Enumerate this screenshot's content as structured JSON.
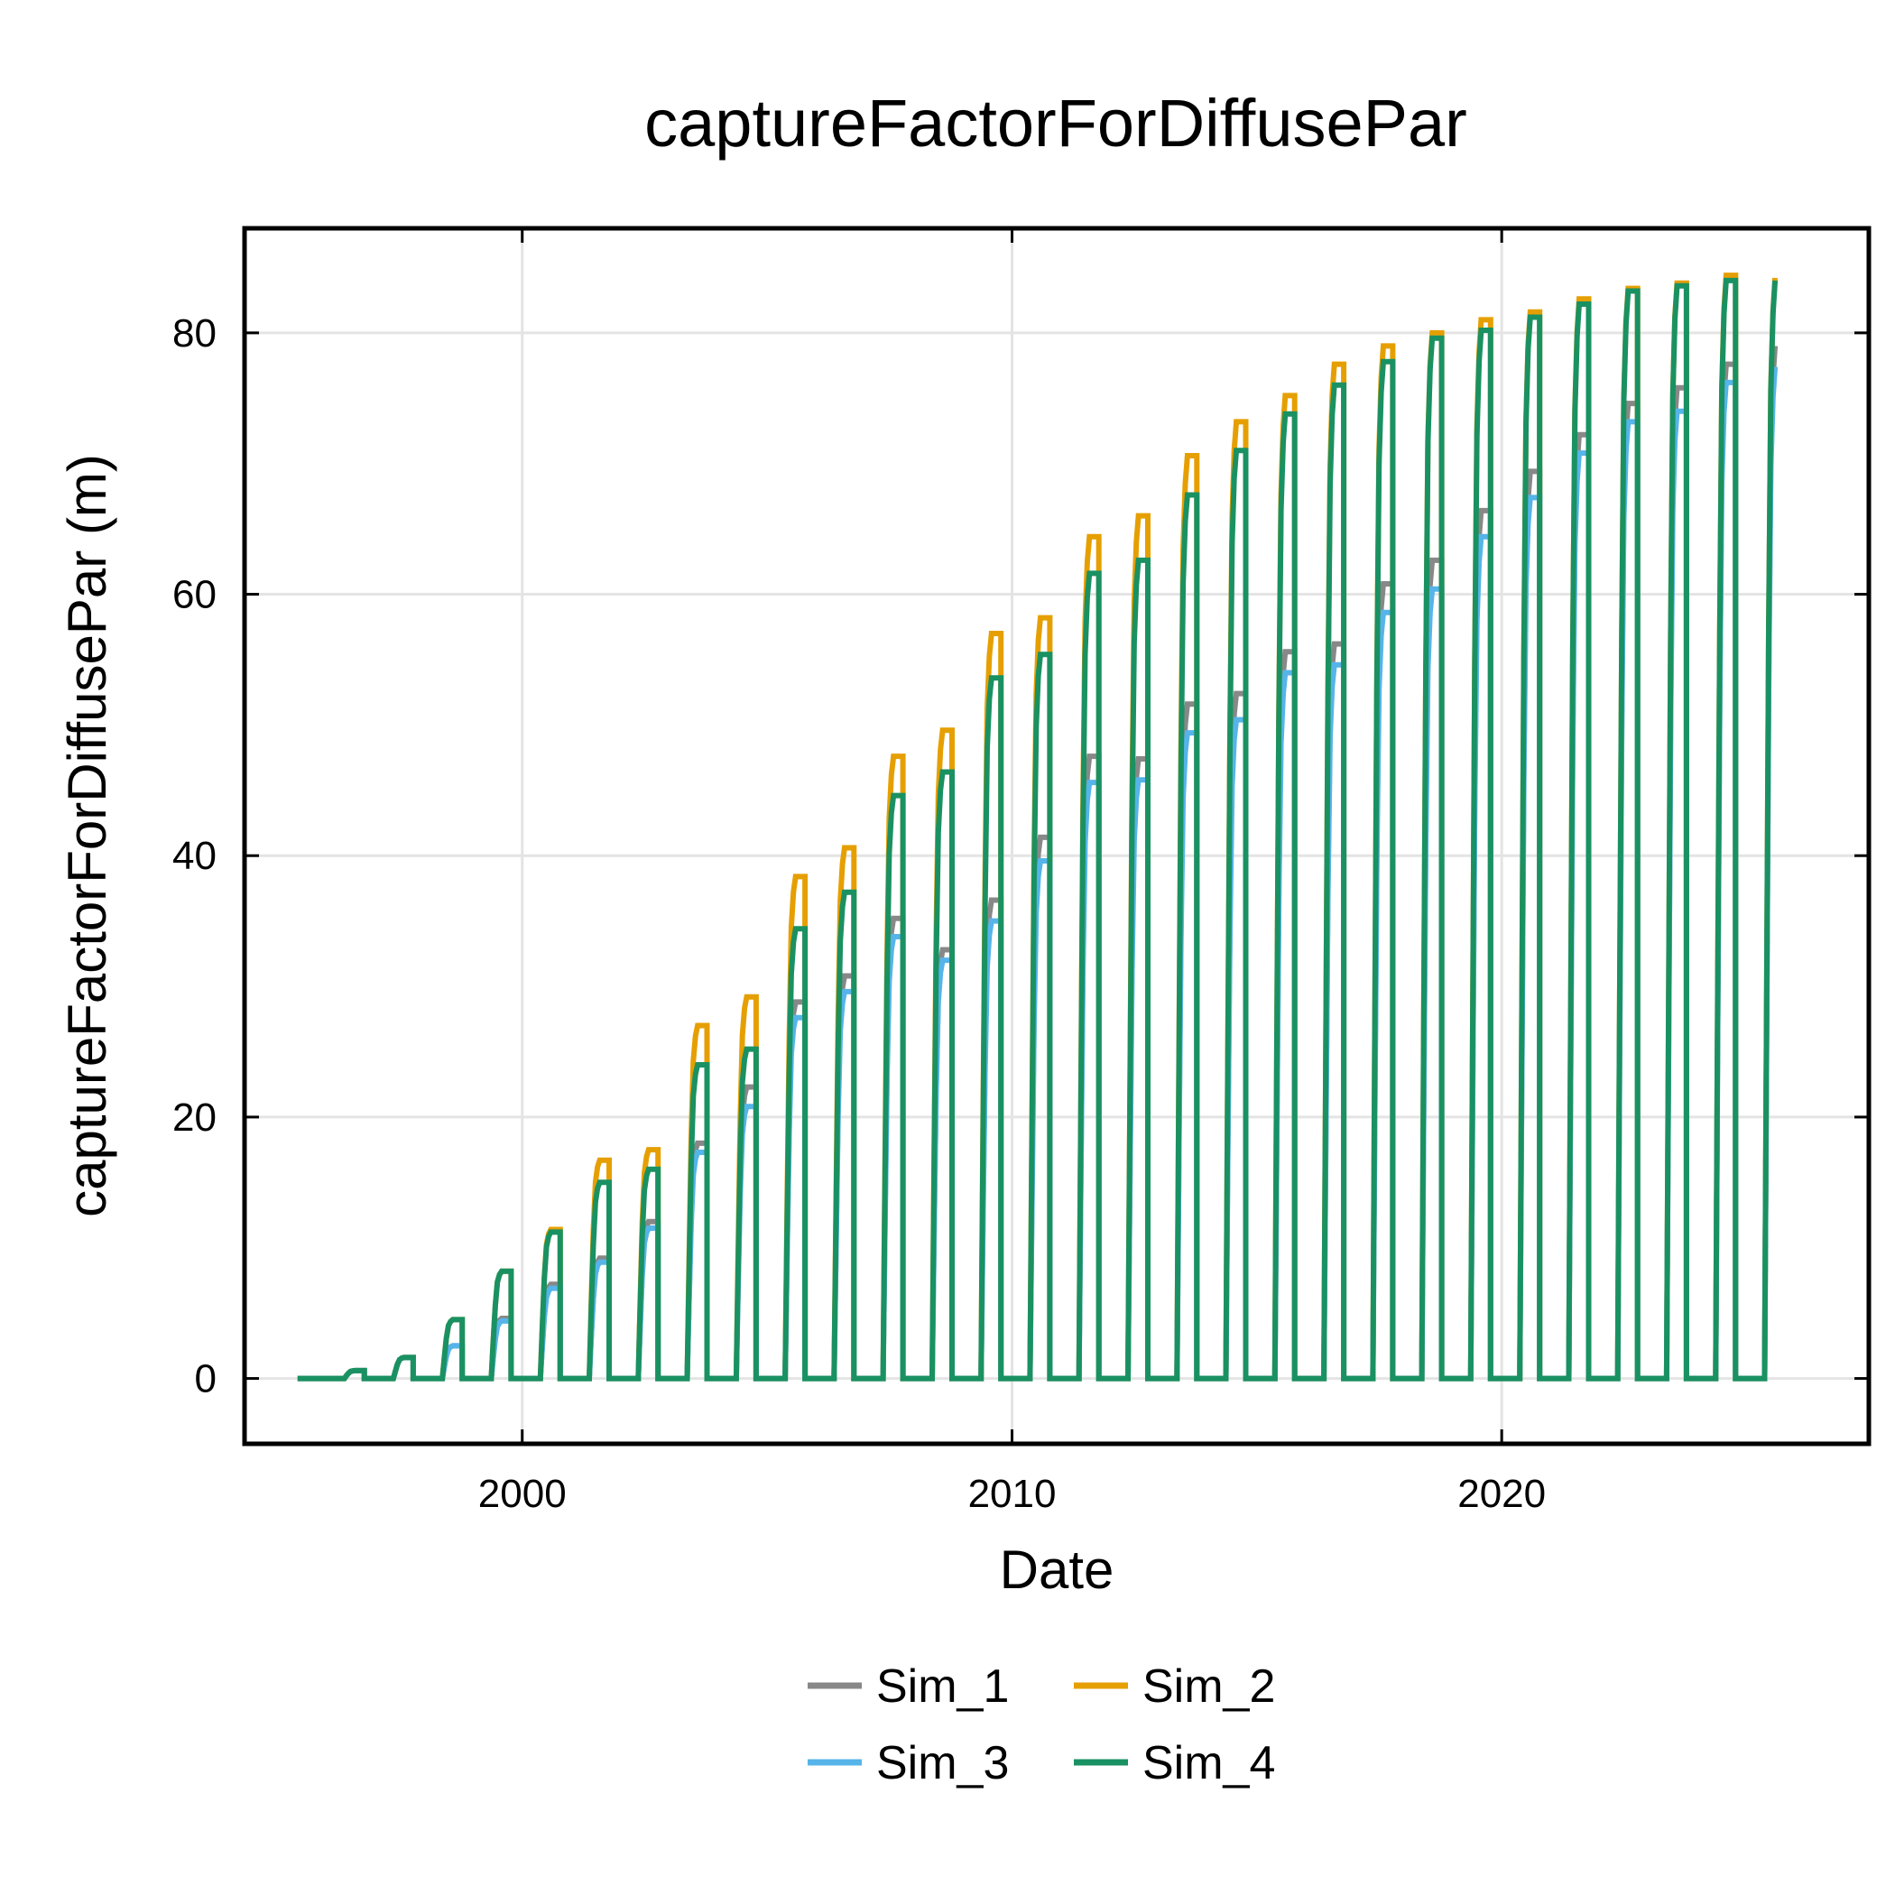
{
  "chart_data": {
    "type": "line",
    "title": "captureFactorForDiffusePar",
    "xlabel": "Date",
    "ylabel": "captureFactorForDiffusePar (m)",
    "x_scale": "time",
    "xlim": [
      "1994-05-01",
      "2027-07-01"
    ],
    "ylim": [
      -5,
      88
    ],
    "x_ticks": [
      {
        "value": "2000-01-01",
        "label": "2000"
      },
      {
        "value": "2010-01-01",
        "label": "2010"
      },
      {
        "value": "2020-01-01",
        "label": "2020"
      }
    ],
    "y_ticks": [
      {
        "value": 0,
        "label": "0"
      },
      {
        "value": 20,
        "label": "20"
      },
      {
        "value": 40,
        "label": "40"
      },
      {
        "value": 60,
        "label": "60"
      },
      {
        "value": 80,
        "label": "80"
      }
    ],
    "grid": true,
    "legend_position": "bottom-center",
    "seasons": [
      {
        "season": "1996",
        "start": "1996-05-15",
        "end": "1996-10-10",
        "peak": {
          "Sim_1": 0.6,
          "Sim_2": 0.6,
          "Sim_3": 0.6,
          "Sim_4": 0.6
        }
      },
      {
        "season": "1997",
        "start": "1997-05-15",
        "end": "1997-10-10",
        "peak": {
          "Sim_1": 1.6,
          "Sim_2": 1.6,
          "Sim_3": 1.6,
          "Sim_4": 1.6
        }
      },
      {
        "season": "1998",
        "start": "1998-05-15",
        "end": "1998-10-10",
        "peak": {
          "Sim_1": 2.5,
          "Sim_2": 4.5,
          "Sim_3": 2.5,
          "Sim_4": 4.5
        }
      },
      {
        "season": "1999",
        "start": "1999-05-15",
        "end": "1999-10-10",
        "peak": {
          "Sim_1": 4.6,
          "Sim_2": 8.2,
          "Sim_3": 4.4,
          "Sim_4": 8.2
        }
      },
      {
        "season": "2000",
        "start": "2000-05-15",
        "end": "2000-10-10",
        "peak": {
          "Sim_1": 7.2,
          "Sim_2": 11.4,
          "Sim_3": 6.9,
          "Sim_4": 11.2
        }
      },
      {
        "season": "2001",
        "start": "2001-05-15",
        "end": "2001-10-10",
        "peak": {
          "Sim_1": 9.2,
          "Sim_2": 16.7,
          "Sim_3": 8.9,
          "Sim_4": 15.0
        }
      },
      {
        "season": "2002",
        "start": "2002-05-15",
        "end": "2002-10-10",
        "peak": {
          "Sim_1": 12.0,
          "Sim_2": 17.5,
          "Sim_3": 11.5,
          "Sim_4": 16.0
        }
      },
      {
        "season": "2003",
        "start": "2003-05-15",
        "end": "2003-10-10",
        "peak": {
          "Sim_1": 18.0,
          "Sim_2": 27.0,
          "Sim_3": 17.3,
          "Sim_4": 24.0
        }
      },
      {
        "season": "2004",
        "start": "2004-05-15",
        "end": "2004-10-10",
        "peak": {
          "Sim_1": 22.3,
          "Sim_2": 29.2,
          "Sim_3": 20.8,
          "Sim_4": 25.2
        }
      },
      {
        "season": "2005",
        "start": "2005-05-15",
        "end": "2005-10-10",
        "peak": {
          "Sim_1": 28.8,
          "Sim_2": 38.4,
          "Sim_3": 27.6,
          "Sim_4": 34.4
        }
      },
      {
        "season": "2006",
        "start": "2006-05-15",
        "end": "2006-10-10",
        "peak": {
          "Sim_1": 30.8,
          "Sim_2": 40.6,
          "Sim_3": 29.6,
          "Sim_4": 37.2
        }
      },
      {
        "season": "2007",
        "start": "2007-05-15",
        "end": "2007-10-10",
        "peak": {
          "Sim_1": 35.2,
          "Sim_2": 47.6,
          "Sim_3": 33.8,
          "Sim_4": 44.6
        }
      },
      {
        "season": "2008",
        "start": "2008-05-15",
        "end": "2008-10-10",
        "peak": {
          "Sim_1": 32.8,
          "Sim_2": 49.6,
          "Sim_3": 32.0,
          "Sim_4": 46.4
        }
      },
      {
        "season": "2009",
        "start": "2009-05-15",
        "end": "2009-10-10",
        "peak": {
          "Sim_1": 36.6,
          "Sim_2": 57.0,
          "Sim_3": 35.0,
          "Sim_4": 53.6
        }
      },
      {
        "season": "2010",
        "start": "2010-05-15",
        "end": "2010-10-10",
        "peak": {
          "Sim_1": 41.4,
          "Sim_2": 58.2,
          "Sim_3": 39.6,
          "Sim_4": 55.4
        }
      },
      {
        "season": "2011",
        "start": "2011-05-15",
        "end": "2011-10-10",
        "peak": {
          "Sim_1": 47.6,
          "Sim_2": 64.4,
          "Sim_3": 45.6,
          "Sim_4": 61.6
        }
      },
      {
        "season": "2012",
        "start": "2012-05-15",
        "end": "2012-10-10",
        "peak": {
          "Sim_1": 47.4,
          "Sim_2": 66.0,
          "Sim_3": 45.8,
          "Sim_4": 62.6
        }
      },
      {
        "season": "2013",
        "start": "2013-05-15",
        "end": "2013-10-10",
        "peak": {
          "Sim_1": 51.6,
          "Sim_2": 70.6,
          "Sim_3": 49.4,
          "Sim_4": 67.6
        }
      },
      {
        "season": "2014",
        "start": "2014-05-15",
        "end": "2014-10-10",
        "peak": {
          "Sim_1": 52.4,
          "Sim_2": 73.2,
          "Sim_3": 50.4,
          "Sim_4": 71.0
        }
      },
      {
        "season": "2015",
        "start": "2015-05-15",
        "end": "2015-10-10",
        "peak": {
          "Sim_1": 55.6,
          "Sim_2": 75.2,
          "Sim_3": 54.0,
          "Sim_4": 73.8
        }
      },
      {
        "season": "2016",
        "start": "2016-05-15",
        "end": "2016-10-10",
        "peak": {
          "Sim_1": 56.2,
          "Sim_2": 77.6,
          "Sim_3": 54.6,
          "Sim_4": 76.0
        }
      },
      {
        "season": "2017",
        "start": "2017-05-15",
        "end": "2017-10-10",
        "peak": {
          "Sim_1": 60.8,
          "Sim_2": 79.0,
          "Sim_3": 58.6,
          "Sim_4": 77.8
        }
      },
      {
        "season": "2018",
        "start": "2018-05-15",
        "end": "2018-10-10",
        "peak": {
          "Sim_1": 62.6,
          "Sim_2": 80.0,
          "Sim_3": 60.4,
          "Sim_4": 79.6
        }
      },
      {
        "season": "2019",
        "start": "2019-05-15",
        "end": "2019-10-10",
        "peak": {
          "Sim_1": 66.4,
          "Sim_2": 81.0,
          "Sim_3": 64.4,
          "Sim_4": 80.2
        }
      },
      {
        "season": "2020",
        "start": "2020-05-15",
        "end": "2020-10-10",
        "peak": {
          "Sim_1": 69.4,
          "Sim_2": 81.6,
          "Sim_3": 67.4,
          "Sim_4": 81.2
        }
      },
      {
        "season": "2021",
        "start": "2021-05-15",
        "end": "2021-10-10",
        "peak": {
          "Sim_1": 72.2,
          "Sim_2": 82.6,
          "Sim_3": 70.8,
          "Sim_4": 82.2
        }
      },
      {
        "season": "2022",
        "start": "2022-05-15",
        "end": "2022-10-10",
        "peak": {
          "Sim_1": 74.6,
          "Sim_2": 83.4,
          "Sim_3": 73.2,
          "Sim_4": 83.2
        }
      },
      {
        "season": "2023",
        "start": "2023-05-15",
        "end": "2023-10-10",
        "peak": {
          "Sim_1": 75.8,
          "Sim_2": 83.8,
          "Sim_3": 74.0,
          "Sim_4": 83.6
        }
      },
      {
        "season": "2024",
        "start": "2024-05-15",
        "end": "2024-10-10",
        "peak": {
          "Sim_1": 77.6,
          "Sim_2": 84.4,
          "Sim_3": 76.2,
          "Sim_4": 84.0
        }
      },
      {
        "season": "2025",
        "start": "2025-05-15",
        "end": "2025-07-01",
        "peak": {
          "Sim_1": 79.0,
          "Sim_2": 84.2,
          "Sim_3": 77.4,
          "Sim_4": 84.0
        }
      }
    ],
    "first_date": "1995-06-01",
    "last_date": "2025-07-01",
    "series": [
      {
        "name": "Sim_1",
        "color": "#888888"
      },
      {
        "name": "Sim_2",
        "color": "#E69F00"
      },
      {
        "name": "Sim_3",
        "color": "#56B4E9"
      },
      {
        "name": "Sim_4",
        "color": "#1A9162"
      }
    ]
  }
}
